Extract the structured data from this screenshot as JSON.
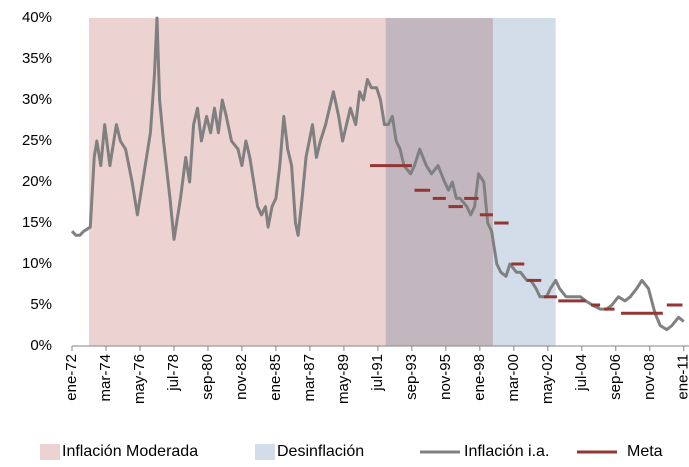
{
  "chart_data": {
    "type": "line",
    "xlim": [
      "1972-01",
      "2011-05"
    ],
    "xticks": [
      {
        "value": "1972-01",
        "label": "ene-72"
      },
      {
        "value": "1974-03",
        "label": "mar-74"
      },
      {
        "value": "1976-05",
        "label": "may-76"
      },
      {
        "value": "1978-07",
        "label": "jul-78"
      },
      {
        "value": "1980-09",
        "label": "sep-80"
      },
      {
        "value": "1982-11",
        "label": "nov-82"
      },
      {
        "value": "1985-01",
        "label": "ene-85"
      },
      {
        "value": "1987-03",
        "label": "mar-87"
      },
      {
        "value": "1989-05",
        "label": "may-89"
      },
      {
        "value": "1991-07",
        "label": "jul-91"
      },
      {
        "value": "1993-09",
        "label": "sep-93"
      },
      {
        "value": "1995-11",
        "label": "nov-95"
      },
      {
        "value": "1998-01",
        "label": "ene-98"
      },
      {
        "value": "2000-03",
        "label": "mar-00"
      },
      {
        "value": "2002-05",
        "label": "may-02"
      },
      {
        "value": "2004-07",
        "label": "jul-04"
      },
      {
        "value": "2006-09",
        "label": "sep-06"
      },
      {
        "value": "2008-11",
        "label": "nov-08"
      },
      {
        "value": "2011-01",
        "label": "ene-11"
      }
    ],
    "ylim": [
      0,
      40
    ],
    "yticks": [
      {
        "value": 0,
        "label": "0%"
      },
      {
        "value": 5,
        "label": "5%"
      },
      {
        "value": 10,
        "label": "10%"
      },
      {
        "value": 15,
        "label": "15%"
      },
      {
        "value": 20,
        "label": "20%"
      },
      {
        "value": 25,
        "label": "25%"
      },
      {
        "value": 30,
        "label": "30%"
      },
      {
        "value": 35,
        "label": "35%"
      },
      {
        "value": 40,
        "label": "40%"
      }
    ],
    "regions": [
      {
        "name": "Inflación Moderada",
        "color": "#ecd3d1",
        "start": "1973-02",
        "end": "1998-11"
      },
      {
        "name": "Desinflación",
        "color": "#d3dde9",
        "start": "1992-01",
        "end": "2002-11"
      }
    ],
    "series": [
      {
        "name": "Inflación i.a.",
        "color": "#808080",
        "x": [
          "1972-01",
          "1972-04",
          "1972-07",
          "1972-10",
          "1973-03",
          "1973-06",
          "1973-08",
          "1973-11",
          "1974-02",
          "1974-06",
          "1974-11",
          "1975-02",
          "1975-06",
          "1975-11",
          "1976-03",
          "1976-07",
          "1977-01",
          "1977-04",
          "1977-06",
          "1977-08",
          "1977-11",
          "1978-04",
          "1978-07",
          "1978-12",
          "1979-04",
          "1979-07",
          "1979-10",
          "1980-01",
          "1980-04",
          "1980-08",
          "1980-11",
          "1981-02",
          "1981-05",
          "1981-08",
          "1981-11",
          "1982-03",
          "1982-08",
          "1982-11",
          "1983-02",
          "1983-05",
          "1983-08",
          "1983-11",
          "1984-02",
          "1984-05",
          "1984-07",
          "1984-10",
          "1985-01",
          "1985-04",
          "1985-07",
          "1985-10",
          "1986-01",
          "1986-04",
          "1986-06",
          "1986-09",
          "1986-12",
          "1987-05",
          "1987-08",
          "1987-11",
          "1988-03",
          "1988-06",
          "1988-09",
          "1989-01",
          "1989-04",
          "1989-07",
          "1989-10",
          "1990-02",
          "1990-05",
          "1990-08",
          "1990-11",
          "1991-02",
          "1991-06",
          "1991-09",
          "1991-12",
          "1992-03",
          "1992-06",
          "1992-09",
          "1992-12",
          "1993-03",
          "1993-08",
          "1993-11",
          "1994-03",
          "1994-08",
          "1994-12",
          "1995-05",
          "1995-10",
          "1996-01",
          "1996-04",
          "1996-07",
          "1996-10",
          "1997-03",
          "1997-06",
          "1997-09",
          "1997-12",
          "1998-04",
          "1998-07",
          "1998-10",
          "1999-02",
          "1999-05",
          "1999-09",
          "1999-12",
          "2000-05",
          "2000-08",
          "2001-01",
          "2001-04",
          "2001-08",
          "2001-11",
          "2002-04",
          "2002-07",
          "2002-11",
          "2003-02",
          "2003-07",
          "2003-12",
          "2004-06",
          "2004-10",
          "2005-03",
          "2005-09",
          "2006-02",
          "2006-06",
          "2006-11",
          "2007-04",
          "2007-08",
          "2008-01",
          "2008-05",
          "2008-10",
          "2009-03",
          "2009-07",
          "2009-12",
          "2010-04",
          "2010-09",
          "2011-01"
        ],
        "values": [
          14,
          13.5,
          13.5,
          14,
          14.5,
          23,
          25,
          22,
          27,
          22,
          27,
          25,
          24,
          20,
          16,
          20,
          26,
          33,
          40,
          30,
          25,
          18,
          13,
          18,
          23,
          20,
          27,
          29,
          25,
          28,
          26,
          29,
          26,
          30,
          28,
          25,
          24,
          22,
          25,
          23,
          20,
          17,
          16,
          17,
          14.5,
          17,
          18,
          22,
          28,
          24,
          22,
          15,
          13.5,
          18,
          23,
          27,
          23,
          25,
          27,
          29,
          31,
          28,
          25,
          27,
          29,
          27,
          31,
          30,
          32.5,
          31.5,
          31.5,
          30,
          27,
          27,
          28,
          25,
          24,
          22,
          21,
          22,
          24,
          22,
          21,
          22,
          20,
          19,
          20,
          18,
          18,
          17,
          16,
          17,
          21,
          20,
          15,
          14,
          10,
          9,
          8.5,
          10,
          9,
          9,
          8,
          8,
          7,
          6,
          6,
          7,
          8,
          7,
          6,
          6,
          6,
          5.5,
          5,
          4.5,
          4.5,
          5,
          6,
          5.5,
          6,
          7,
          8,
          7,
          4,
          2.5,
          2,
          2.5,
          3.5,
          3
        ]
      },
      {
        "name": "Meta",
        "color": "#943634",
        "segments": [
          {
            "start": "1991-01",
            "end": "1993-09",
            "value": 22
          },
          {
            "start": "1993-11",
            "end": "1994-11",
            "value": 19
          },
          {
            "start": "1995-01",
            "end": "1995-11",
            "value": 18
          },
          {
            "start": "1996-01",
            "end": "1996-12",
            "value": 17
          },
          {
            "start": "1997-01",
            "end": "1997-12",
            "value": 18
          },
          {
            "start": "1998-01",
            "end": "1998-11",
            "value": 16
          },
          {
            "start": "1998-12",
            "end": "1999-11",
            "value": 15
          },
          {
            "start": "2000-01",
            "end": "2000-11",
            "value": 10
          },
          {
            "start": "2001-01",
            "end": "2001-12",
            "value": 8
          },
          {
            "start": "2002-02",
            "end": "2002-12",
            "value": 6
          },
          {
            "start": "2003-01",
            "end": "2004-10",
            "value": 5.5
          },
          {
            "start": "2005-02",
            "end": "2005-09",
            "value": 5
          },
          {
            "start": "2005-12",
            "end": "2006-08",
            "value": 4.5
          },
          {
            "start": "2007-01",
            "end": "2009-09",
            "value": 4
          },
          {
            "start": "2009-12",
            "end": "2010-12",
            "value": 5
          }
        ]
      }
    ]
  }
}
